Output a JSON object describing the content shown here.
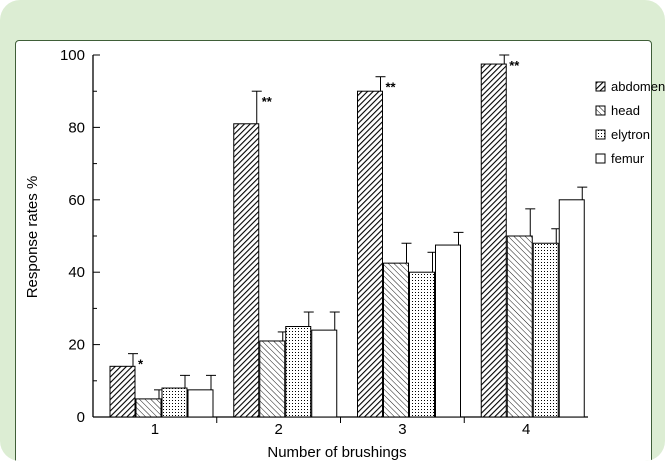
{
  "chart_data": {
    "type": "bar",
    "title": "",
    "xlabel": "Number of brushings",
    "ylabel": "Response rates %",
    "ylim": [
      0,
      100
    ],
    "yticks": [
      "0",
      "20",
      "40",
      "60",
      "80",
      "100"
    ],
    "grid": false,
    "legend_position": "top-right",
    "categories": [
      "1",
      "2",
      "3",
      "4"
    ],
    "series": [
      {
        "name": "abdomen",
        "pattern": "diagonal-hatch-dense",
        "values": [
          14,
          81,
          90,
          97.5
        ],
        "errors": [
          3.5,
          9,
          4,
          2.5
        ]
      },
      {
        "name": "head",
        "pattern": "diagonal-hatch-light",
        "values": [
          5,
          21,
          42.5,
          50
        ],
        "errors": [
          2.5,
          2.5,
          5.5,
          7.5
        ]
      },
      {
        "name": "elytron",
        "pattern": "dotted",
        "values": [
          8,
          25,
          40,
          48
        ],
        "errors": [
          3.5,
          4,
          5.5,
          4
        ]
      },
      {
        "name": "femur",
        "pattern": "open",
        "values": [
          7.5,
          24,
          47.5,
          60
        ],
        "errors": [
          4,
          5,
          3.5,
          3.5
        ]
      }
    ],
    "annotations": [
      {
        "category": "1",
        "series": "abdomen",
        "text": "*"
      },
      {
        "category": "2",
        "series": "abdomen",
        "text": "**"
      },
      {
        "category": "3",
        "series": "abdomen",
        "text": "**"
      },
      {
        "category": "4",
        "series": "abdomen",
        "text": "**"
      }
    ],
    "colors": {
      "frame": "#dcedd3",
      "panel_border": "#3f5e38",
      "ink": "#000000"
    }
  }
}
